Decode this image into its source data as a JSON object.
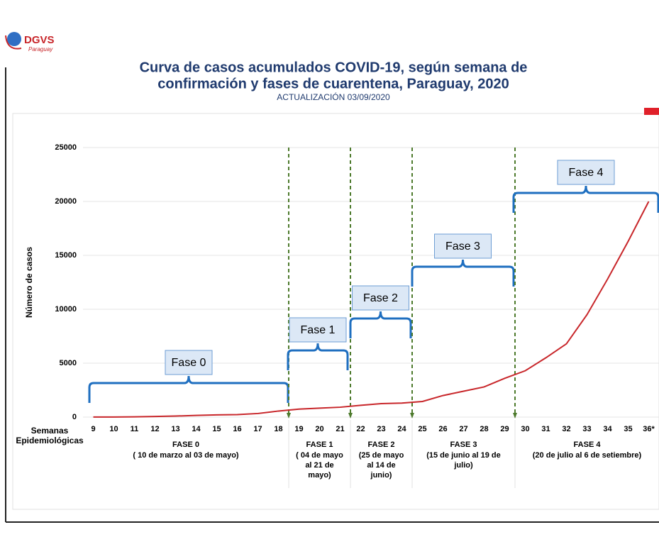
{
  "header": {
    "logo": "DGVS",
    "logo_sub": "Paraguay"
  },
  "chart_data": {
    "type": "line",
    "title": [
      "Curva de casos acumulados COVID-19, según semana de",
      "confirmación y fases de cuarentena, Paraguay, 2020"
    ],
    "subtitle": "ACTUALIZACIÓN 03/09/2020",
    "y_label": "Número de casos",
    "x_label": [
      "Semanas",
      "Epidemiológicas"
    ],
    "categories": [
      "9",
      "10",
      "11",
      "12",
      "13",
      "14",
      "15",
      "16",
      "17",
      "18",
      "19",
      "20",
      "21",
      "22",
      "23",
      "24",
      "25",
      "26",
      "27",
      "28",
      "29",
      "30",
      "31",
      "32",
      "33",
      "34",
      "35",
      "36*"
    ],
    "values": [
      5,
      11,
      27,
      59,
      96,
      159,
      208,
      230,
      333,
      563,
      740,
      830,
      917,
      1090,
      1250,
      1300,
      1450,
      2000,
      2400,
      2800,
      3600,
      4300,
      5500,
      6800,
      9500,
      12800,
      16300,
      20000
    ],
    "color": "#c8262a",
    "ylim": [
      0,
      25000
    ],
    "yticks": [
      0,
      5000,
      10000,
      15000,
      20000,
      25000
    ],
    "grid": true,
    "phases": [
      {
        "label": "Fase 0",
        "name": "FASE 0",
        "period": [
          "( 10 de marzo al 03 de mayo)"
        ]
      },
      {
        "label": "Fase 1",
        "name": "FASE 1",
        "period": [
          "( 04 de mayo",
          "al 21 de",
          "mayo)"
        ]
      },
      {
        "label": "Fase 2",
        "name": "FASE 2",
        "period": [
          "(25 de mayo",
          "al 14 de",
          "junio)"
        ]
      },
      {
        "label": "Fase 3",
        "name": "FASE 3",
        "period": [
          "(15 de junio al 19 de",
          "julio)"
        ]
      },
      {
        "label": "Fase 4",
        "name": "FASE 4",
        "period": [
          "(20 de julio al 6 de setiembre)"
        ]
      }
    ]
  }
}
